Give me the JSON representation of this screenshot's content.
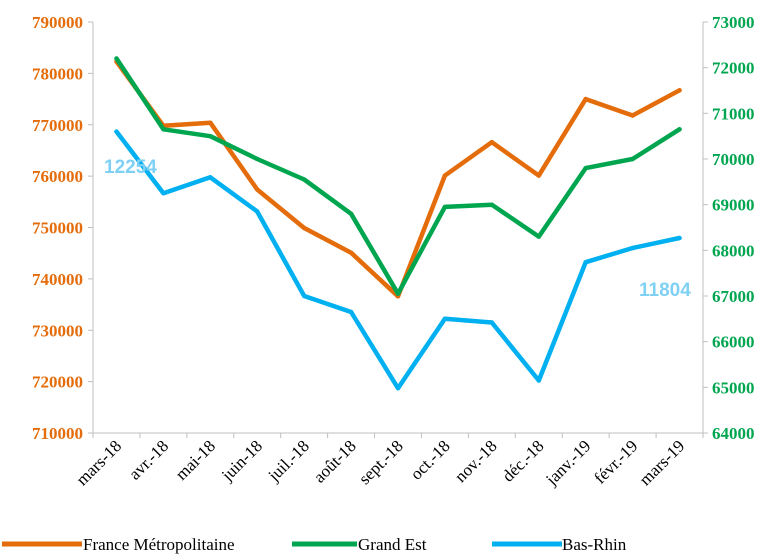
{
  "chart_data": {
    "type": "line",
    "title": "",
    "categories": [
      "mars-18",
      "avr.-18",
      "mai-18",
      "juin-18",
      "juil.-18",
      "août-18",
      "sept.-18",
      "oct.-18",
      "nov.-18",
      "déc.-18",
      "janv.-19",
      "févr.-19",
      "mars-19"
    ],
    "y_left": {
      "ylim": [
        710000,
        790000
      ],
      "ticks": [
        "710000",
        "720000",
        "730000",
        "740000",
        "750000",
        "760000",
        "770000",
        "780000",
        "790000"
      ],
      "color": "#E46C0A"
    },
    "y_right": {
      "ylim": [
        64000,
        73000
      ],
      "ticks": [
        "64000",
        "65000",
        "66000",
        "67000",
        "68000",
        "69000",
        "70000",
        "71000",
        "72000",
        "73000"
      ],
      "color": "#00A64F"
    },
    "series": [
      {
        "name": "France Métropolitaine",
        "axis": "left",
        "color": "#E46C0A",
        "values": [
          782300,
          769800,
          770400,
          757400,
          749900,
          745100,
          736600,
          760100,
          766600,
          760100,
          775000,
          771800,
          776700
        ]
      },
      {
        "name": "Grand Est",
        "axis": "right",
        "color": "#00A64F",
        "values": [
          72200,
          70650,
          70500,
          70000,
          69550,
          68800,
          67050,
          68950,
          69000,
          68300,
          69800,
          70000,
          70650
        ]
      },
      {
        "name": "Bas-Rhin",
        "axis": "right",
        "color": "#00B0F0",
        "values": [
          70600,
          69250,
          69600,
          68850,
          67000,
          66650,
          64980,
          66500,
          66420,
          65150,
          67740,
          68050,
          68270
        ]
      }
    ],
    "annotations": [
      {
        "text": "12254",
        "color": "#7FD0F5"
      },
      {
        "text": "11804",
        "color": "#7FD0F5"
      }
    ],
    "legend_position": "bottom",
    "grid": false
  }
}
